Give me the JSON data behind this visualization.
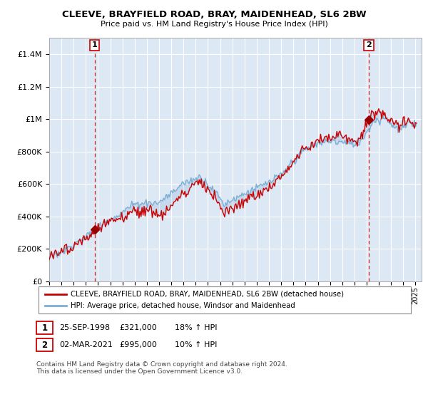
{
  "title": "CLEEVE, BRAYFIELD ROAD, BRAY, MAIDENHEAD, SL6 2BW",
  "subtitle": "Price paid vs. HM Land Registry's House Price Index (HPI)",
  "legend_line1": "CLEEVE, BRAYFIELD ROAD, BRAY, MAIDENHEAD, SL6 2BW (detached house)",
  "legend_line2": "HPI: Average price, detached house, Windsor and Maidenhead",
  "annotation1_label": "1",
  "annotation1_date": "25-SEP-1998",
  "annotation1_price": "£321,000",
  "annotation1_hpi": "18% ↑ HPI",
  "annotation2_label": "2",
  "annotation2_date": "02-MAR-2021",
  "annotation2_price": "£995,000",
  "annotation2_hpi": "10% ↑ HPI",
  "footnote": "Contains HM Land Registry data © Crown copyright and database right 2024.\nThis data is licensed under the Open Government Licence v3.0.",
  "sale1_year": 1998.73,
  "sale1_price": 321000,
  "sale2_year": 2021.17,
  "sale2_price": 995000,
  "red_line_color": "#cc0000",
  "blue_line_color": "#7aadd4",
  "sale_dot_color": "#990000",
  "dashed_line_color": "#cc0000",
  "plot_bg_color": "#dde8f5",
  "background_color": "#ffffff",
  "grid_color": "#ffffff",
  "ylim_max": 1500000,
  "xlim_min": 1995,
  "xlim_max": 2025.5
}
